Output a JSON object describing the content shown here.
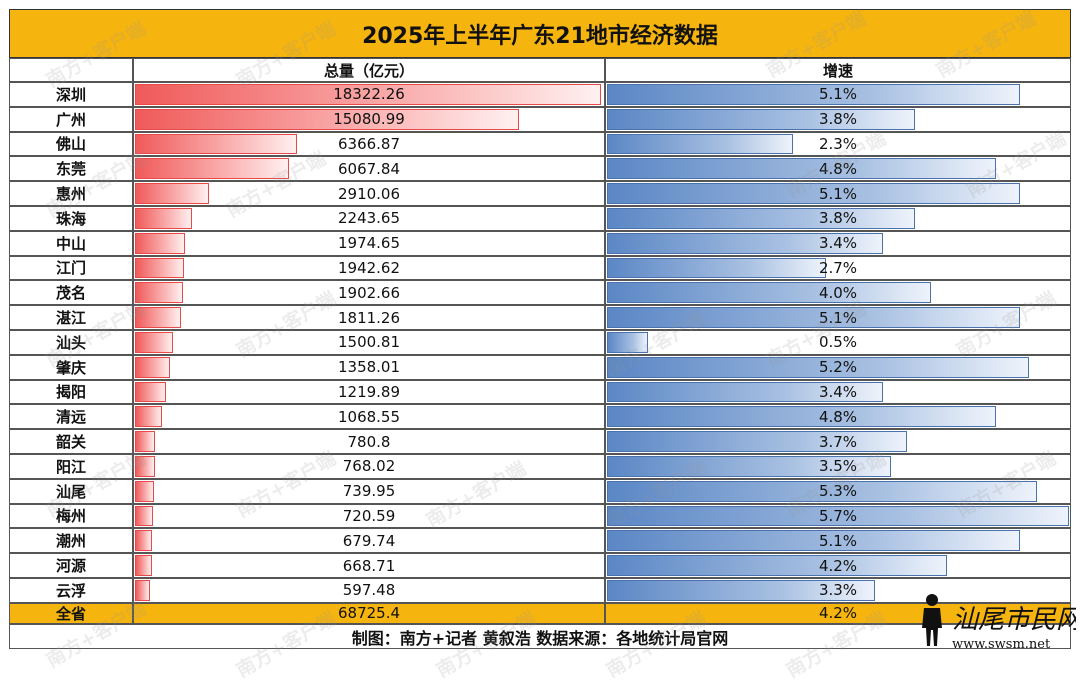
{
  "title": "2025年上半年广东21地市经济数据",
  "headers": {
    "city": "",
    "total": "总量（亿元）",
    "growth": "增速"
  },
  "colors": {
    "header_bg": "#f6b40e",
    "total_bar": "#f05a5a",
    "growth_bar": "#5b87c5"
  },
  "chart_data": {
    "type": "table",
    "categories": [
      "深圳",
      "广州",
      "佛山",
      "东莞",
      "惠州",
      "珠海",
      "中山",
      "江门",
      "茂名",
      "湛江",
      "汕头",
      "肇庆",
      "揭阳",
      "清远",
      "韶关",
      "阳江",
      "汕尾",
      "梅州",
      "潮州",
      "河源",
      "云浮"
    ],
    "total_labels": [
      "18322.26",
      "15080.99",
      "6366.87",
      "6067.84",
      "2910.06",
      "2243.65",
      "1974.65",
      "1942.62",
      "1902.66",
      "1811.26",
      "1500.81",
      "1358.01",
      "1219.89",
      "1068.55",
      "780.8",
      "768.02",
      "739.95",
      "720.59",
      "679.74",
      "668.71",
      "597.48"
    ],
    "total_values": [
      18322.26,
      15080.99,
      6366.87,
      6067.84,
      2910.06,
      2243.65,
      1974.65,
      1942.62,
      1902.66,
      1811.26,
      1500.81,
      1358.01,
      1219.89,
      1068.55,
      780.8,
      768.02,
      739.95,
      720.59,
      679.74,
      668.71,
      597.48
    ],
    "growth_labels": [
      "5.1%",
      "3.8%",
      "2.3%",
      "4.8%",
      "5.1%",
      "3.8%",
      "3.4%",
      "2.7%",
      "4.0%",
      "5.1%",
      "0.5%",
      "5.2%",
      "3.4%",
      "4.8%",
      "3.7%",
      "3.5%",
      "5.3%",
      "5.7%",
      "5.1%",
      "4.2%",
      "3.3%"
    ],
    "growth_values": [
      5.1,
      3.8,
      2.3,
      4.8,
      5.1,
      3.8,
      3.4,
      2.7,
      4.0,
      5.1,
      0.5,
      5.2,
      3.4,
      4.8,
      3.7,
      3.5,
      5.3,
      5.7,
      5.1,
      4.2,
      3.3
    ],
    "total_row": {
      "label": "全省",
      "total": "68725.4",
      "growth": "4.2%"
    }
  },
  "footer": "制图：南方+记者 黄叙浩 数据来源：各地统计局官网",
  "watermark": "南方+客户端",
  "logo": {
    "text": "汕尾市民网",
    "url_text": "www.swsm.net"
  }
}
